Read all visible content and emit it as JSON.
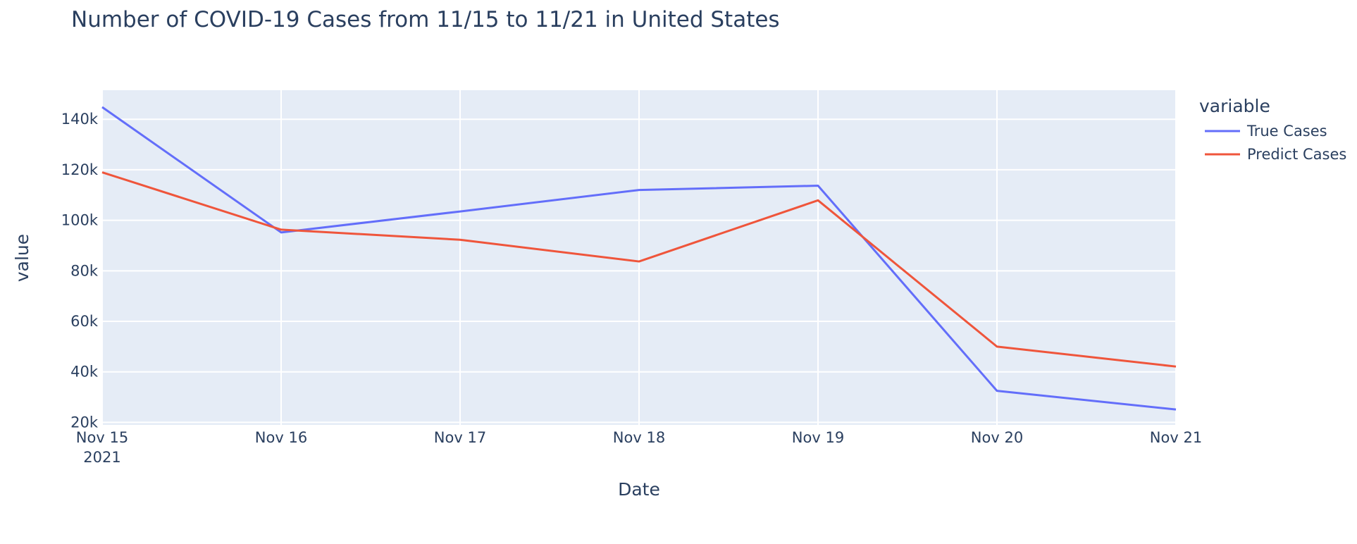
{
  "chart_data": {
    "type": "line",
    "title": "Number of COVID-19 Cases from 11/15 to 11/21 in United States",
    "xlabel": "Date",
    "ylabel": "value",
    "x": [
      "2021-11-15",
      "2021-11-16",
      "2021-11-17",
      "2021-11-18",
      "2021-11-19",
      "2021-11-20",
      "2021-11-21"
    ],
    "x_tick_labels": [
      "Nov 15",
      "Nov 16",
      "Nov 17",
      "Nov 18",
      "Nov 19",
      "Nov 20",
      "Nov 21"
    ],
    "x_year_label": "2021",
    "y_ticks": [
      20000,
      40000,
      60000,
      80000,
      100000,
      120000,
      140000
    ],
    "y_tick_labels": [
      "20k",
      "40k",
      "60k",
      "80k",
      "100k",
      "120k",
      "140k"
    ],
    "ylim": [
      19000,
      151500
    ],
    "grid": true,
    "legend": {
      "title": "variable",
      "position": "right"
    },
    "series": [
      {
        "name": "True Cases",
        "color": "#636efa",
        "values": [
          144800,
          95200,
          103500,
          112000,
          113700,
          32500,
          25100
        ]
      },
      {
        "name": "Predict Cases",
        "color": "#ef553b",
        "values": [
          119000,
          96300,
          92300,
          83700,
          107900,
          50000,
          42100
        ]
      }
    ],
    "colors": {
      "plot_bg": "#e5ecf6",
      "grid": "#ffffff",
      "text": "#2a3f5f"
    }
  }
}
